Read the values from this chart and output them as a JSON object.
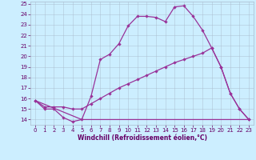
{
  "bg_color": "#cceeff",
  "line_color": "#993399",
  "xlabel": "Windchill (Refroidissement éolien,°C)",
  "xlim": [
    -0.5,
    23.5
  ],
  "ylim": [
    13.5,
    25.2
  ],
  "xticks": [
    0,
    1,
    2,
    3,
    4,
    5,
    6,
    7,
    8,
    9,
    10,
    11,
    12,
    13,
    14,
    15,
    16,
    17,
    18,
    19,
    20,
    21,
    22,
    23
  ],
  "yticks": [
    14,
    15,
    16,
    17,
    18,
    19,
    20,
    21,
    22,
    23,
    24,
    25
  ],
  "series1_x": [
    0,
    1,
    2,
    3,
    4,
    5,
    6,
    7,
    8,
    9,
    10,
    11,
    12,
    13,
    14,
    15,
    16,
    17,
    18,
    19,
    20,
    21,
    22,
    23
  ],
  "series1_y": [
    15.8,
    15.0,
    15.0,
    14.2,
    13.8,
    14.0,
    16.2,
    19.7,
    20.2,
    21.2,
    22.9,
    23.8,
    23.8,
    23.7,
    23.3,
    24.7,
    24.8,
    23.8,
    22.5,
    20.8,
    19.0,
    16.5,
    15.0,
    14.0
  ],
  "series2_x": [
    0,
    1,
    2,
    3,
    4,
    5,
    6,
    7,
    8,
    9,
    10,
    11,
    12,
    13,
    14,
    15,
    16,
    17,
    18,
    19,
    20,
    21,
    22,
    23
  ],
  "series2_y": [
    15.8,
    15.2,
    15.2,
    15.2,
    15.0,
    15.0,
    15.5,
    16.0,
    16.5,
    17.0,
    17.4,
    17.8,
    18.2,
    18.6,
    19.0,
    19.4,
    19.7,
    20.0,
    20.3,
    20.8,
    19.0,
    16.5,
    15.0,
    14.0
  ],
  "series3_x": [
    0,
    5,
    19,
    20,
    21,
    22,
    23
  ],
  "series3_y": [
    15.8,
    14.0,
    14.0,
    14.0,
    14.0,
    14.0,
    14.0
  ],
  "grid_color": "#aabbcc",
  "tick_color": "#660066",
  "xlabel_color": "#660066",
  "tick_fontsize": 5.0,
  "xlabel_fontsize": 5.5
}
